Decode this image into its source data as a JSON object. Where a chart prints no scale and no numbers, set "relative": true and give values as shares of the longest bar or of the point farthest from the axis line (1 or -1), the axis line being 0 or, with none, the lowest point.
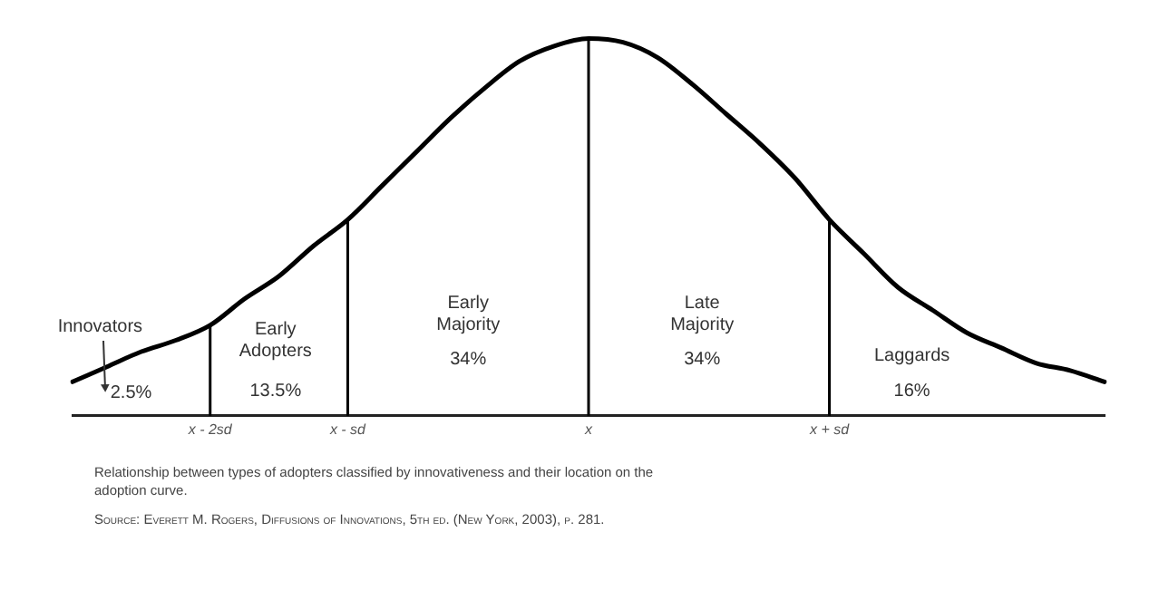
{
  "chart_data": {
    "type": "line",
    "relative": true,
    "categories": [
      null,
      null,
      null,
      null,
      "x - 2sd",
      null,
      null,
      null,
      "x - sd",
      null,
      null,
      null,
      null,
      null,
      null,
      "x",
      null,
      null,
      null,
      null,
      null,
      null,
      "x + sd",
      null,
      null,
      null,
      null,
      null,
      null,
      null,
      null
    ],
    "series": [
      {
        "color": "#000000",
        "values": [
          0.09,
          0.13,
          0.17,
          0.2,
          0.24,
          0.31,
          0.37,
          0.45,
          0.52,
          0.61,
          0.7,
          0.79,
          0.87,
          0.94,
          0.98,
          1,
          0.99,
          0.95,
          0.88,
          0.8,
          0.72,
          0.63,
          0.52,
          0.43,
          0.34,
          0.28,
          0.22,
          0.18,
          0.14,
          0.12,
          0.09
        ]
      }
    ],
    "ref_lines": [
      {
        "axis": "x",
        "value": "x - 2sd",
        "color": "#000000"
      },
      {
        "axis": "x",
        "value": "x - sd",
        "color": "#000000"
      },
      {
        "axis": "x",
        "value": "x",
        "color": "#000000"
      },
      {
        "axis": "x",
        "value": "x + sd",
        "color": "#000000"
      }
    ],
    "grid": false,
    "legend": false,
    "marker": "none",
    "line_style": "solid",
    "annotations": [
      "Innovators",
      "2.5%",
      "Early Adopters",
      "13.5%",
      "Early Majority",
      "34%",
      "Late Majority",
      "34%",
      "Laggards",
      "16%",
      "Relationship between types of adopters classified by innovativeness and their location on the adoption curve.",
      "Source: Everett M. Rogers, Diffusions of Innovations, 5th ed. (New York, 2003), p. 281."
    ]
  }
}
